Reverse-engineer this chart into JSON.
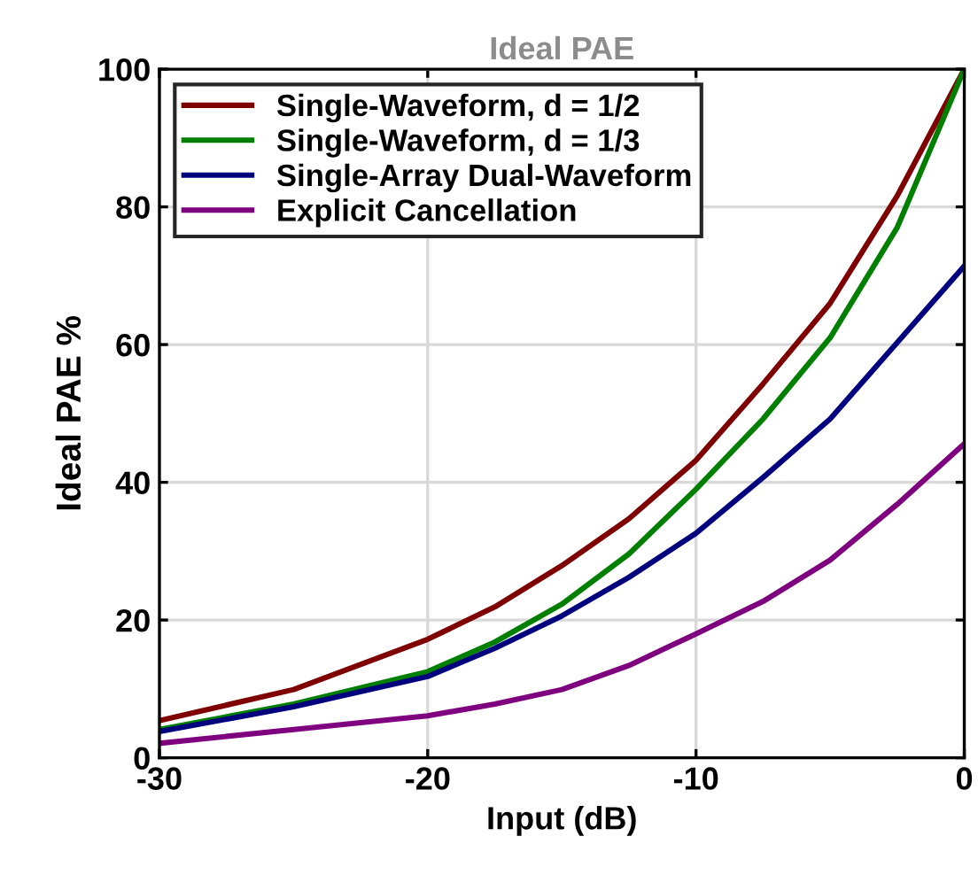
{
  "chart_data": {
    "type": "line",
    "title": "Ideal PAE",
    "xlabel": "Input (dB)",
    "ylabel": "Ideal PAE %",
    "x": [
      -30,
      -25,
      -20,
      -17.5,
      -15,
      -12.5,
      -10,
      -7.5,
      -5,
      -2.5,
      0
    ],
    "series": [
      {
        "name": "Single-Waveform, d = 1/2",
        "color": "#7f0000",
        "values": [
          5.4,
          9.9,
          17.2,
          21.9,
          27.9,
          34.7,
          43.2,
          54.3,
          66,
          81.6,
          100
        ]
      },
      {
        "name": "Single-Waveform, d = 1/3",
        "color": "#007f00",
        "values": [
          4.1,
          7.8,
          12.5,
          16.8,
          22.3,
          29.6,
          39,
          49.2,
          61,
          77,
          100
        ]
      },
      {
        "name": "Single-Array Dual-Waveform",
        "color": "#00007f",
        "values": [
          3.8,
          7.4,
          11.8,
          15.9,
          20.6,
          26.2,
          32.6,
          40.7,
          49.2,
          60.3,
          71.4
        ]
      },
      {
        "name": "Explicit Cancellation",
        "color": "#7f007f",
        "values": [
          2.1,
          4.1,
          6.1,
          7.8,
          9.9,
          13.4,
          18,
          22.7,
          28.7,
          36.8,
          45.6
        ]
      }
    ],
    "xlim": [
      -30,
      0
    ],
    "xticks": [
      -30,
      -20,
      -10,
      0
    ],
    "ylim": [
      0,
      100
    ],
    "yticks": [
      0,
      20,
      40,
      60,
      80,
      100
    ],
    "grid": true,
    "legend": "top left",
    "marker": "none",
    "line_style": "solid"
  }
}
